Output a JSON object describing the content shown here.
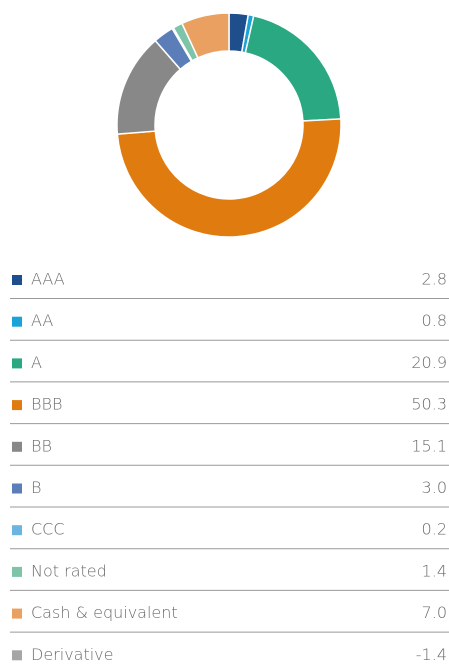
{
  "chart_data": {
    "type": "pie",
    "donut": true,
    "categories": [
      "AAA",
      "AA",
      "A",
      "BBB",
      "BB",
      "B",
      "CCC",
      "Not rated",
      "Cash & equivalent",
      "Derivative"
    ],
    "values": [
      2.8,
      0.8,
      20.9,
      50.3,
      15.1,
      3.0,
      0.2,
      1.4,
      7.0,
      -1.4
    ],
    "value_labels": [
      "2.8",
      "0.8",
      "20.9",
      "50.3",
      "15.1",
      "3.0",
      "0.2",
      "1.4",
      "7.0",
      "-1.4"
    ],
    "colors": [
      "#1f4e8c",
      "#1aa3d9",
      "#2aa882",
      "#e07b10",
      "#888888",
      "#5b7db8",
      "#6bb5e0",
      "#7dc4a8",
      "#e9a060",
      "#a6a6a6"
    ]
  }
}
